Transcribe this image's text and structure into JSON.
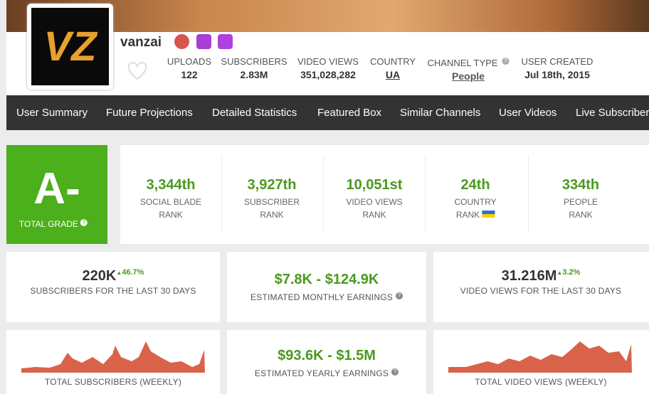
{
  "header": {
    "avatar_text": "VZ",
    "name": "vanzai",
    "stats": [
      {
        "label": "UPLOADS",
        "value": "122"
      },
      {
        "label": "SUBSCRIBERS",
        "value": "2.83M"
      },
      {
        "label": "VIDEO VIEWS",
        "value": "351,028,282"
      },
      {
        "label": "COUNTRY",
        "value": "UA"
      },
      {
        "label": "CHANNEL TYPE",
        "value": "People"
      },
      {
        "label": "USER CREATED",
        "value": "Jul 18th, 2015"
      }
    ]
  },
  "nav": [
    "User Summary",
    "Future Projections",
    "Detailed Statistics",
    "Featured Box",
    "Similar Channels",
    "User Videos",
    "Live Subscriber"
  ],
  "grade": {
    "value": "A-",
    "label": "TOTAL GRADE"
  },
  "ranks": [
    {
      "value": "3,344th",
      "label": [
        "SOCIAL BLADE",
        "RANK"
      ]
    },
    {
      "value": "3,927th",
      "label": [
        "SUBSCRIBER",
        "RANK"
      ]
    },
    {
      "value": "10,051st",
      "label": [
        "VIDEO VIEWS",
        "RANK"
      ]
    },
    {
      "value": "24th",
      "label": [
        "COUNTRY",
        "RANK"
      ]
    },
    {
      "value": "334th",
      "label": [
        "PEOPLE",
        "RANK"
      ]
    }
  ],
  "cards": [
    {
      "value": "220K",
      "change": "46.7%",
      "label": "SUBSCRIBERS FOR THE LAST 30 DAYS"
    },
    {
      "value": "$7.8K - $124.9K",
      "label": "ESTIMATED MONTHLY EARNINGS"
    },
    {
      "value": "31.216M",
      "change": "3.2%",
      "label": "VIDEO VIEWS FOR THE LAST 30 DAYS"
    },
    {
      "label": "TOTAL SUBSCRIBERS (WEEKLY)"
    },
    {
      "value": "$93.6K - $1.5M",
      "label": "ESTIMATED YEARLY EARNINGS"
    },
    {
      "label": "TOTAL VIDEO VIEWS (WEEKLY)"
    }
  ]
}
